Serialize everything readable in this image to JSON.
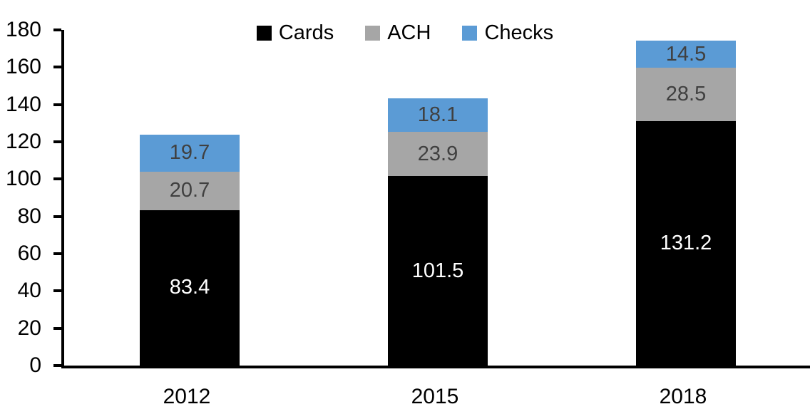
{
  "chart_data": {
    "type": "bar",
    "stacked": true,
    "title": "",
    "xlabel": "",
    "ylabel": "",
    "categories": [
      "2012",
      "2015",
      "2018"
    ],
    "series": [
      {
        "name": "Cards",
        "color": "#000000",
        "label_color": "#ffffff",
        "values": [
          83.4,
          101.5,
          131.2
        ]
      },
      {
        "name": "ACH",
        "color": "#a6a6a6",
        "label_color": "#404040",
        "values": [
          20.7,
          23.9,
          28.5
        ]
      },
      {
        "name": "Checks",
        "color": "#5b9bd5",
        "label_color": "#404040",
        "values": [
          19.7,
          18.1,
          14.5
        ]
      }
    ],
    "totals": [
      123.8,
      143.5,
      174.2
    ],
    "ylim": [
      0,
      180
    ],
    "ytick_step": 20,
    "ytick_labels": [
      "0",
      "20",
      "40",
      "60",
      "80",
      "100",
      "120",
      "140",
      "160",
      "180"
    ],
    "legend_position": "top-center",
    "grid": false,
    "axis_color": "#000000",
    "background_color": "#ffffff"
  }
}
